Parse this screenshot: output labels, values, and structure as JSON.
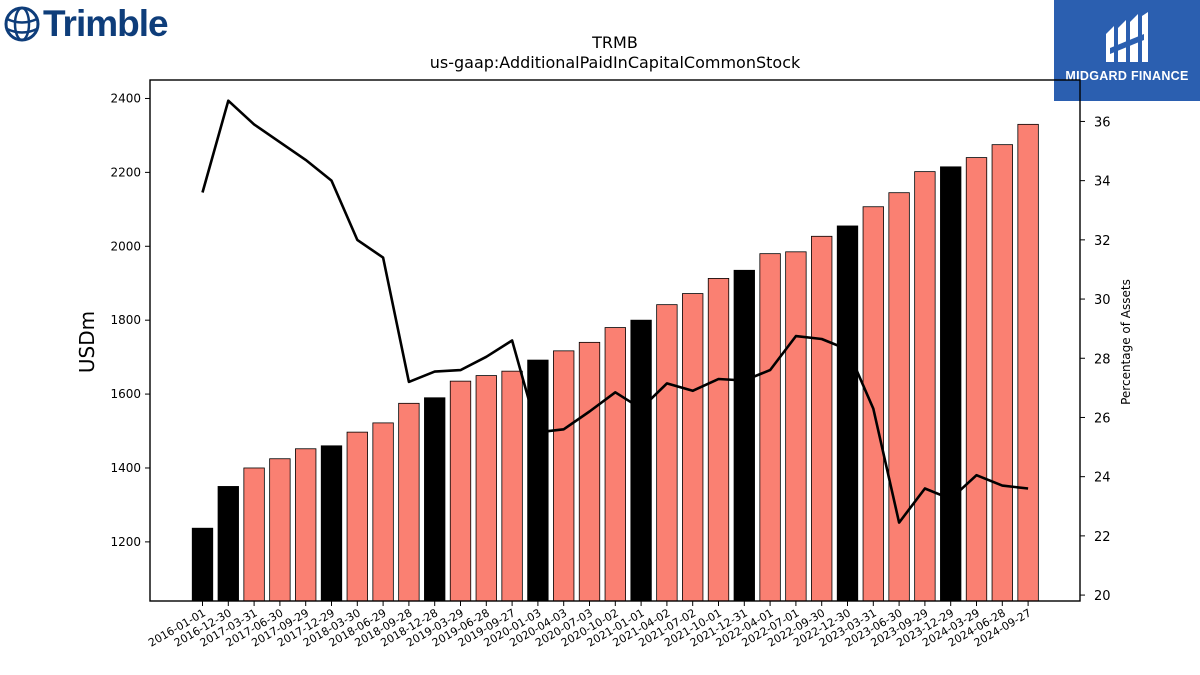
{
  "brand": {
    "left_logo_text": "Trimble",
    "right_logo_text": "MIDGARD FINANCE",
    "right_logo_bg": "#2b5fb0",
    "left_logo_color": "#0e3d7a"
  },
  "chart_data": {
    "type": "bar",
    "title": "TRMB",
    "subtitle": "us-gaap:AdditionalPaidInCapitalCommonStock",
    "ylabel": "USDm",
    "y2label": "Percentage of Assets",
    "ylim": [
      1040,
      2450
    ],
    "y2lim": [
      19.8,
      37.4
    ],
    "yticks": [
      1200,
      1400,
      1600,
      1800,
      2000,
      2200,
      2400
    ],
    "y2ticks": [
      20,
      22,
      24,
      26,
      28,
      30,
      32,
      34,
      36
    ],
    "bar_colors": {
      "quarter": "#fa8072",
      "year_end": "#000000"
    },
    "categories": [
      "2016-01-01",
      "2016-12-30",
      "2017-03-31",
      "2017-06-30",
      "2017-09-29",
      "2017-12-29",
      "2018-03-30",
      "2018-06-29",
      "2018-09-28",
      "2018-12-28",
      "2019-03-29",
      "2019-06-28",
      "2019-09-27",
      "2020-01-03",
      "2020-04-03",
      "2020-07-03",
      "2020-10-02",
      "2021-01-01",
      "2021-04-02",
      "2021-07-02",
      "2021-10-01",
      "2021-12-31",
      "2022-04-01",
      "2022-07-01",
      "2022-09-30",
      "2022-12-30",
      "2023-03-31",
      "2023-06-30",
      "2023-09-29",
      "2023-12-29",
      "2024-03-29",
      "2024-06-28",
      "2024-09-27"
    ],
    "series": [
      {
        "kind": "bar",
        "values": [
          1237,
          1350,
          1400,
          1425,
          1452,
          1460,
          1497,
          1522,
          1575,
          1590,
          1635,
          1650,
          1662,
          1692,
          1717,
          1740,
          1780,
          1800,
          1842,
          1872,
          1913,
          1935,
          1980,
          1985,
          2027,
          2055,
          2107,
          2145,
          2202,
          2215,
          2240,
          2275,
          2330
        ],
        "year_end": [
          true,
          true,
          false,
          false,
          false,
          true,
          false,
          false,
          false,
          true,
          false,
          false,
          false,
          true,
          false,
          false,
          false,
          true,
          false,
          false,
          false,
          true,
          false,
          false,
          false,
          true,
          false,
          false,
          false,
          true,
          false,
          false,
          false
        ]
      },
      {
        "kind": "line",
        "axis": "right",
        "color": "#000000",
        "values": [
          33.6,
          36.7,
          35.9,
          35.3,
          34.7,
          34.0,
          32.0,
          31.4,
          27.2,
          27.55,
          27.6,
          28.05,
          28.6,
          25.5,
          25.6,
          26.2,
          26.85,
          26.3,
          27.15,
          26.9,
          27.3,
          27.25,
          27.6,
          28.75,
          28.65,
          28.3,
          26.3,
          22.45,
          23.6,
          23.25,
          24.05,
          23.7,
          23.6
        ]
      }
    ]
  }
}
